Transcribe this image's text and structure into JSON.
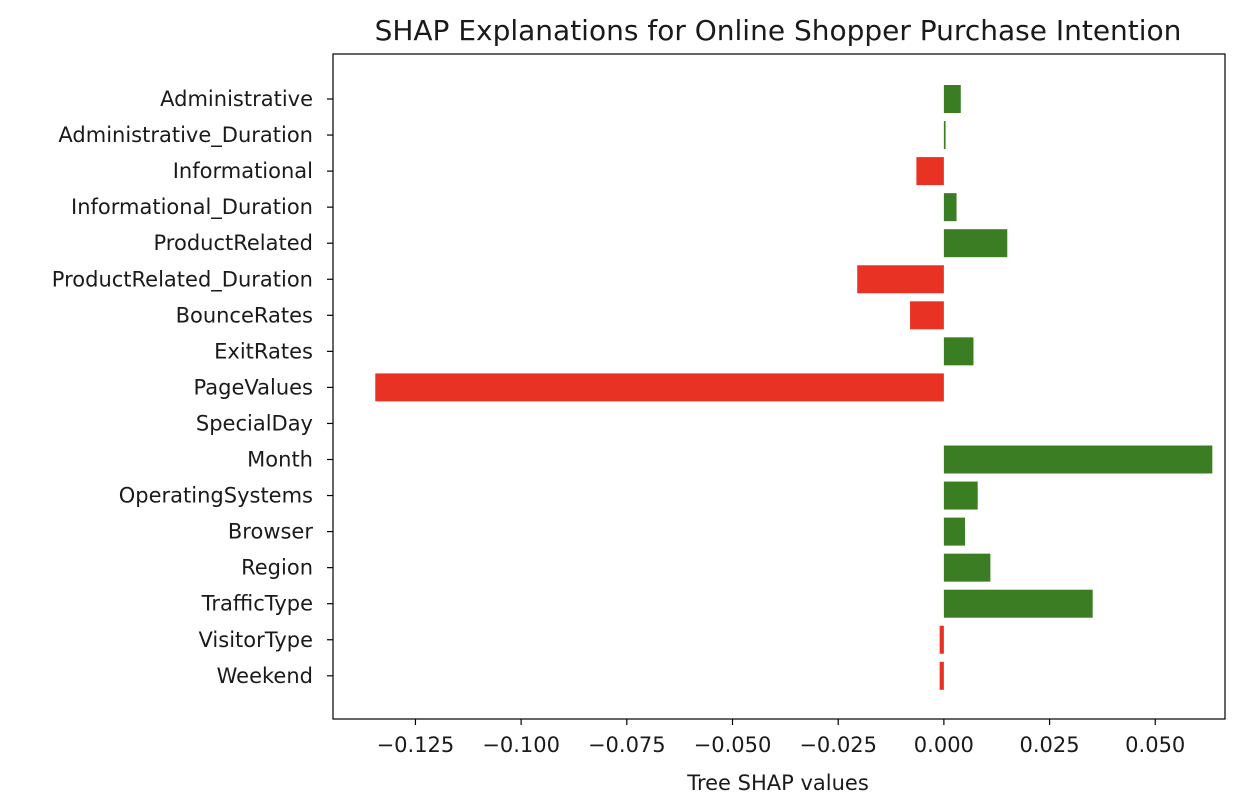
{
  "chart_data": {
    "type": "bar",
    "orientation": "horizontal",
    "title": "SHAP Explanations for Online Shopper Purchase Intention",
    "xlabel": "Tree SHAP values",
    "ylabel": "",
    "xlim": [
      -0.1445,
      0.0665
    ],
    "grid": false,
    "positive_color": "#3a7d22",
    "negative_color": "#e83324",
    "categories": [
      "Administrative",
      "Administrative_Duration",
      "Informational",
      "Informational_Duration",
      "ProductRelated",
      "ProductRelated_Duration",
      "BounceRates",
      "ExitRates",
      "PageValues",
      "SpecialDay",
      "Month",
      "OperatingSystems",
      "Browser",
      "Region",
      "TrafficType",
      "VisitorType",
      "Weekend"
    ],
    "values": [
      0.004,
      0.0004,
      -0.0065,
      0.003,
      0.015,
      -0.0205,
      -0.008,
      0.007,
      -0.1345,
      0.0,
      0.0635,
      0.008,
      0.005,
      0.011,
      0.0352,
      -0.001,
      -0.001
    ],
    "xticks": [
      -0.125,
      -0.1,
      -0.075,
      -0.05,
      -0.025,
      0.0,
      0.025,
      0.05
    ],
    "xtick_labels": [
      "−0.125",
      "−0.100",
      "−0.075",
      "−0.050",
      "−0.025",
      "0.000",
      "0.025",
      "0.050"
    ]
  }
}
